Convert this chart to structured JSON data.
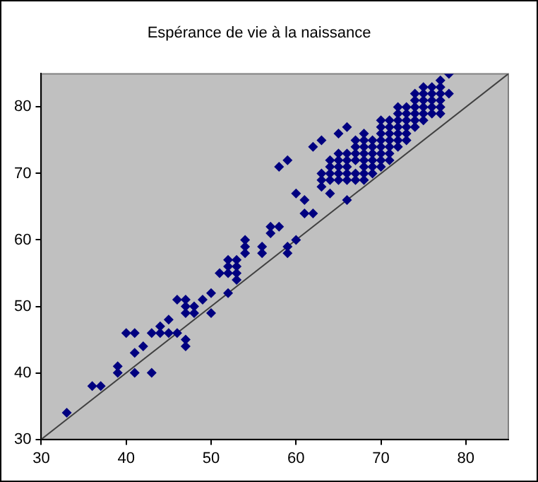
{
  "chart_data": {
    "type": "scatter",
    "title": "Espérance de vie à la naissance",
    "xlim": [
      30,
      85
    ],
    "ylim": [
      30,
      85
    ],
    "xticks": [
      30,
      40,
      50,
      60,
      70,
      80
    ],
    "yticks": [
      30,
      40,
      50,
      60,
      70,
      80
    ],
    "grid": false,
    "legend": false,
    "marker": "diamond",
    "series": [
      {
        "color": "#000080",
        "x": [
          33,
          36,
          37,
          39,
          39,
          41,
          43,
          40,
          41,
          41,
          42,
          43,
          44,
          44,
          45,
          45,
          46,
          46,
          47,
          47,
          47,
          48,
          48,
          47,
          47,
          49,
          50,
          50,
          52,
          51,
          52,
          52,
          52,
          53,
          53,
          53,
          53,
          54,
          54,
          54,
          56,
          56,
          57,
          58,
          57,
          58,
          59,
          59,
          59,
          60,
          60,
          61,
          61,
          62,
          62,
          63,
          63,
          63,
          63,
          64,
          65,
          66,
          64,
          64,
          64,
          64,
          65,
          65,
          65,
          65,
          65,
          66,
          66,
          66,
          66,
          66,
          66,
          67,
          67,
          67,
          67,
          67,
          67,
          68,
          68,
          68,
          68,
          68,
          68,
          68,
          68,
          69,
          69,
          69,
          69,
          69,
          69,
          70,
          70,
          70,
          70,
          70,
          70,
          70,
          70,
          71,
          71,
          71,
          71,
          71,
          71,
          71,
          72,
          72,
          72,
          72,
          72,
          72,
          72,
          73,
          73,
          73,
          73,
          73,
          73,
          74,
          74,
          74,
          74,
          74,
          74,
          75,
          75,
          75,
          75,
          75,
          75,
          76,
          76,
          76,
          76,
          76,
          77,
          77,
          77,
          77,
          77,
          77,
          78,
          78
        ],
        "values": [
          34,
          38,
          38,
          40,
          41,
          40,
          40,
          46,
          46,
          43,
          44,
          46,
          46,
          47,
          48,
          46,
          46,
          51,
          51,
          50,
          49,
          50,
          49,
          45,
          44,
          51,
          52,
          49,
          52,
          55,
          55,
          56,
          57,
          55,
          56,
          57,
          54,
          58,
          59,
          60,
          59,
          58,
          62,
          62,
          61,
          71,
          72,
          59,
          58,
          60,
          67,
          66,
          64,
          64,
          74,
          75,
          70,
          69,
          68,
          67,
          76,
          77,
          69,
          70,
          71,
          72,
          69,
          70,
          72,
          73,
          71,
          66,
          69,
          70,
          71,
          72,
          73,
          69,
          70,
          72,
          73,
          74,
          75,
          69,
          70,
          71,
          72,
          73,
          74,
          75,
          76,
          70,
          71,
          72,
          73,
          74,
          75,
          71,
          72,
          73,
          74,
          75,
          76,
          77,
          78,
          72,
          73,
          74,
          75,
          76,
          77,
          78,
          74,
          75,
          76,
          77,
          78,
          79,
          80,
          75,
          76,
          77,
          78,
          79,
          80,
          77,
          78,
          79,
          80,
          81,
          82,
          78,
          79,
          80,
          81,
          82,
          83,
          79,
          80,
          81,
          82,
          83,
          79,
          80,
          81,
          82,
          83,
          84,
          82,
          85
        ]
      },
      {
        "type": "line",
        "color": "#404040",
        "marker": "none",
        "x": [
          30,
          85
        ],
        "values": [
          30,
          85
        ]
      }
    ]
  }
}
